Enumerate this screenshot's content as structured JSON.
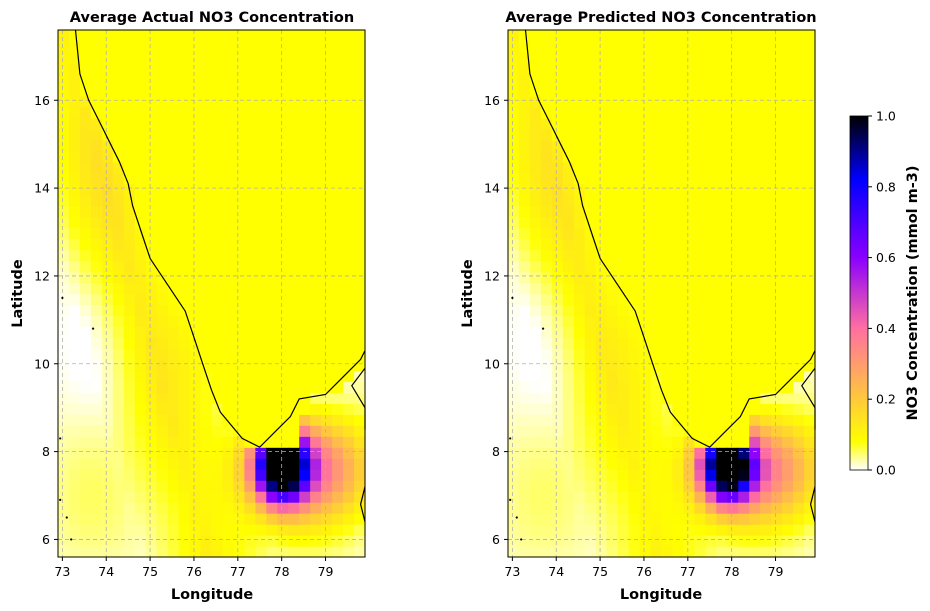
{
  "chart_data": [
    {
      "type": "heatmap",
      "title": "Average Actual NO3 Concentration",
      "xlabel": "Longitude",
      "ylabel": "Latitude",
      "xlim": [
        72.9,
        79.9
      ],
      "ylim": [
        5.6,
        17.6
      ],
      "xticks": [
        73,
        74,
        75,
        76,
        77,
        78,
        79
      ],
      "yticks": [
        6,
        8,
        10,
        12,
        14,
        16
      ],
      "grid": true,
      "land_fill_value": 0.0,
      "hotspot": {
        "lon": 78.0,
        "lat": 7.7,
        "peak_value": 1.0
      }
    },
    {
      "type": "heatmap",
      "title": "Average Predicted NO3 Concentration",
      "xlabel": "Longitude",
      "ylabel": "Latitude",
      "xlim": [
        72.9,
        79.9
      ],
      "ylim": [
        5.6,
        17.6
      ],
      "xticks": [
        73,
        74,
        75,
        76,
        77,
        78,
        79
      ],
      "yticks": [
        6,
        8,
        10,
        12,
        14,
        16
      ],
      "grid": true,
      "land_fill_value": 0.0,
      "hotspot": {
        "lon": 77.9,
        "lat": 7.7,
        "peak_value": 1.0
      }
    }
  ],
  "colorbar": {
    "label": "NO3 Concentration (mmol m-3)",
    "range": [
      0.0,
      1.0
    ],
    "ticks": [
      "0.0",
      "0.2",
      "0.4",
      "0.6",
      "0.8",
      "1.0"
    ],
    "colormap": "gnuplot2_r",
    "stops": [
      "#ffffff",
      "#ffff00",
      "#ff6fa0",
      "#8a00ff",
      "#0000ff",
      "#000000"
    ]
  }
}
